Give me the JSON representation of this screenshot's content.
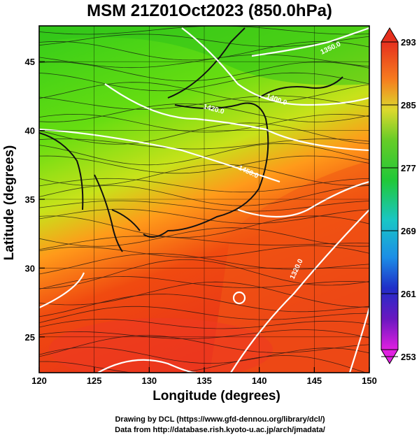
{
  "title": "MSM 21Z01Oct2023 (850.0hPa)",
  "axes": {
    "xlabel": "Longitude (degrees)",
    "ylabel": "Latitude  (degrees)",
    "xticks": [
      "120",
      "125",
      "130",
      "135",
      "140",
      "145",
      "150"
    ],
    "yticks": [
      "25",
      "30",
      "35",
      "40",
      "45"
    ],
    "xlim": [
      120,
      150
    ],
    "ylim": [
      22.4,
      47.6
    ]
  },
  "colorbar": {
    "ticks": [
      "293",
      "285",
      "277",
      "269",
      "261",
      "253"
    ],
    "range": [
      253,
      293
    ]
  },
  "contour_labels": [
    "1350.0",
    "1400.0",
    "1420.0",
    "1450.0",
    "1320.0"
  ],
  "credits": {
    "line1": "Drawing by DCL (https://www.gfd-dennou.org/library/dcl/)",
    "line2": "Data from http://database.rish.kyoto-u.ac.jp/arch/jmadata/"
  }
}
